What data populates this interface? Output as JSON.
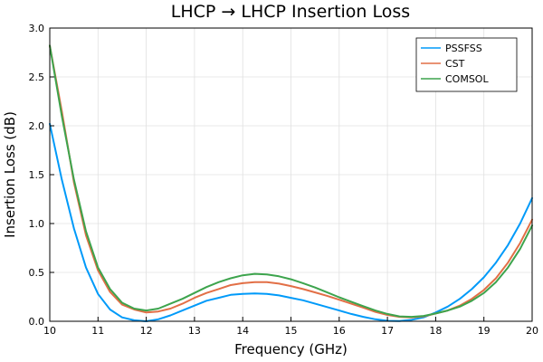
{
  "chart_data": {
    "type": "line",
    "title": "LHCP → LHCP Insertion Loss",
    "xlabel": "Frequency (GHz)",
    "ylabel": "Insertion Loss (dB)",
    "xlim": [
      10,
      20
    ],
    "ylim": [
      0,
      3.0
    ],
    "xticks": [
      10,
      11,
      12,
      13,
      14,
      15,
      16,
      17,
      18,
      19,
      20
    ],
    "xtick_labels": [
      "10",
      "11",
      "12",
      "13",
      "14",
      "15",
      "16",
      "17",
      "18",
      "19",
      "20"
    ],
    "yticks": [
      0,
      0.5,
      1.0,
      1.5,
      2.0,
      2.5,
      3.0
    ],
    "ytick_labels": [
      "0.0",
      "0.5",
      "1.0",
      "1.5",
      "2.0",
      "2.5",
      "3.0"
    ],
    "grid": true,
    "legend_position": "top-right",
    "series": [
      {
        "name": "PSSFSS",
        "color": "#009af9",
        "x": [
          10.0,
          10.25,
          10.5,
          10.75,
          11.0,
          11.25,
          11.5,
          11.75,
          12.0,
          12.25,
          12.5,
          12.75,
          13.0,
          13.25,
          13.5,
          13.75,
          14.0,
          14.25,
          14.5,
          14.75,
          15.0,
          15.25,
          15.5,
          15.75,
          16.0,
          16.25,
          16.5,
          16.75,
          17.0,
          17.25,
          17.5,
          17.75,
          18.0,
          18.25,
          18.5,
          18.75,
          19.0,
          19.25,
          19.5,
          19.75,
          20.0
        ],
        "y": [
          2.02,
          1.45,
          0.95,
          0.55,
          0.28,
          0.12,
          0.04,
          0.01,
          0.0,
          0.02,
          0.06,
          0.11,
          0.16,
          0.21,
          0.24,
          0.27,
          0.28,
          0.285,
          0.28,
          0.265,
          0.24,
          0.215,
          0.18,
          0.145,
          0.11,
          0.075,
          0.045,
          0.02,
          0.005,
          0.003,
          0.015,
          0.04,
          0.09,
          0.15,
          0.23,
          0.33,
          0.45,
          0.6,
          0.78,
          1.0,
          1.26
        ]
      },
      {
        "name": "CST",
        "color": "#e26f46",
        "x": [
          10.0,
          10.25,
          10.5,
          10.75,
          11.0,
          11.25,
          11.5,
          11.75,
          12.0,
          12.25,
          12.5,
          12.75,
          13.0,
          13.25,
          13.5,
          13.75,
          14.0,
          14.25,
          14.5,
          14.75,
          15.0,
          15.25,
          15.5,
          15.75,
          16.0,
          16.25,
          16.5,
          16.75,
          17.0,
          17.25,
          17.5,
          17.75,
          18.0,
          18.25,
          18.5,
          18.75,
          19.0,
          19.25,
          19.5,
          19.75,
          20.0
        ],
        "y": [
          2.82,
          2.15,
          1.42,
          0.88,
          0.52,
          0.3,
          0.17,
          0.12,
          0.09,
          0.1,
          0.13,
          0.18,
          0.24,
          0.29,
          0.33,
          0.37,
          0.39,
          0.4,
          0.4,
          0.385,
          0.36,
          0.33,
          0.295,
          0.26,
          0.22,
          0.18,
          0.14,
          0.095,
          0.065,
          0.045,
          0.04,
          0.05,
          0.08,
          0.11,
          0.16,
          0.23,
          0.32,
          0.44,
          0.6,
          0.8,
          1.04
        ]
      },
      {
        "name": "COMSOL",
        "color": "#3da44d",
        "x": [
          10.0,
          10.25,
          10.5,
          10.75,
          11.0,
          11.25,
          11.5,
          11.75,
          12.0,
          12.25,
          12.5,
          12.75,
          13.0,
          13.25,
          13.5,
          13.75,
          14.0,
          14.25,
          14.5,
          14.75,
          15.0,
          15.25,
          15.5,
          15.75,
          16.0,
          16.25,
          16.5,
          16.75,
          17.0,
          17.25,
          17.5,
          17.75,
          18.0,
          18.25,
          18.5,
          18.75,
          19.0,
          19.25,
          19.5,
          19.75,
          20.0
        ],
        "y": [
          2.82,
          2.1,
          1.45,
          0.92,
          0.55,
          0.33,
          0.19,
          0.13,
          0.11,
          0.13,
          0.18,
          0.23,
          0.29,
          0.35,
          0.4,
          0.44,
          0.47,
          0.485,
          0.48,
          0.46,
          0.43,
          0.39,
          0.345,
          0.295,
          0.245,
          0.2,
          0.155,
          0.11,
          0.075,
          0.05,
          0.045,
          0.055,
          0.08,
          0.11,
          0.15,
          0.21,
          0.29,
          0.4,
          0.55,
          0.74,
          0.98
        ]
      }
    ]
  }
}
